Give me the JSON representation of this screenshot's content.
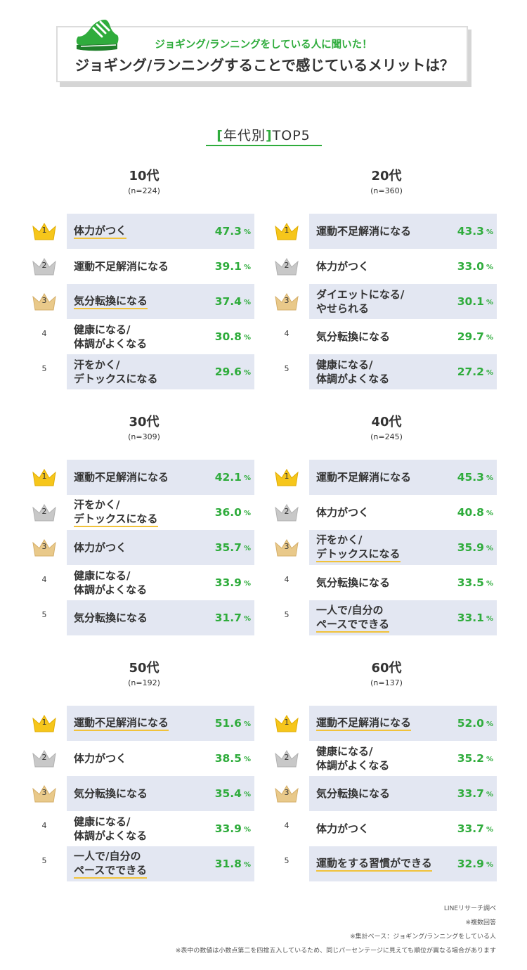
{
  "header": {
    "subtitle": "ジョギング/ランニングをしている人に聞いた！",
    "title": "ジョギング/ランニングすることで感じているメリットは？"
  },
  "section": {
    "title_left": "[",
    "title_mid": "年代別",
    "title_right": "]",
    "title_tail": "TOP5"
  },
  "colors": {
    "accent_green": "#2fac3c",
    "highlight_yellow": "#f1c23a",
    "row_shade": "#e3e7f2",
    "gold": "#f6c61b",
    "silver": "#c8c8c8",
    "bronze": "#e9c98a"
  },
  "chart_data": [
    {
      "type": "table",
      "title": "10代",
      "n": "(n=224)",
      "rows": [
        {
          "rank": "1",
          "label": "体力がつく",
          "value": "47.3",
          "highlight": true
        },
        {
          "rank": "2",
          "label": "運動不足解消になる",
          "value": "39.1",
          "highlight": false
        },
        {
          "rank": "3",
          "label": "気分転換になる",
          "value": "37.4",
          "highlight": true
        },
        {
          "rank": "4",
          "label": "健康になる/\n体調がよくなる",
          "value": "30.8",
          "highlight": false
        },
        {
          "rank": "5",
          "label": "汗をかく/\nデトックスになる",
          "value": "29.6",
          "highlight": false
        }
      ]
    },
    {
      "type": "table",
      "title": "20代",
      "n": "(n=360)",
      "rows": [
        {
          "rank": "1",
          "label": "運動不足解消になる",
          "value": "43.3",
          "highlight": false
        },
        {
          "rank": "2",
          "label": "体力がつく",
          "value": "33.0",
          "highlight": false
        },
        {
          "rank": "3",
          "label": "ダイエットになる/\nやせられる",
          "value": "30.1",
          "highlight": false
        },
        {
          "rank": "4",
          "label": "気分転換になる",
          "value": "29.7",
          "highlight": false
        },
        {
          "rank": "5",
          "label": "健康になる/\n体調がよくなる",
          "value": "27.2",
          "highlight": false
        }
      ]
    },
    {
      "type": "table",
      "title": "30代",
      "n": "(n=309)",
      "rows": [
        {
          "rank": "1",
          "label": "運動不足解消になる",
          "value": "42.1",
          "highlight": false
        },
        {
          "rank": "2",
          "label": "汗をかく/\nデトックスになる",
          "value": "36.0",
          "highlight": true
        },
        {
          "rank": "3",
          "label": "体力がつく",
          "value": "35.7",
          "highlight": false
        },
        {
          "rank": "4",
          "label": "健康になる/\n体調がよくなる",
          "value": "33.9",
          "highlight": false
        },
        {
          "rank": "5",
          "label": "気分転換になる",
          "value": "31.7",
          "highlight": false
        }
      ]
    },
    {
      "type": "table",
      "title": "40代",
      "n": "(n=245)",
      "rows": [
        {
          "rank": "1",
          "label": "運動不足解消になる",
          "value": "45.3",
          "highlight": false
        },
        {
          "rank": "2",
          "label": "体力がつく",
          "value": "40.8",
          "highlight": false
        },
        {
          "rank": "3",
          "label": "汗をかく/\nデトックスになる",
          "value": "35.9",
          "highlight": true
        },
        {
          "rank": "4",
          "label": "気分転換になる",
          "value": "33.5",
          "highlight": false
        },
        {
          "rank": "5",
          "label": "一人で/自分の\nペースでできる",
          "value": "33.1",
          "highlight": true
        }
      ]
    },
    {
      "type": "table",
      "title": "50代",
      "n": "(n=192)",
      "rows": [
        {
          "rank": "1",
          "label": "運動不足解消になる",
          "value": "51.6",
          "highlight": true
        },
        {
          "rank": "2",
          "label": "体力がつく",
          "value": "38.5",
          "highlight": false
        },
        {
          "rank": "3",
          "label": "気分転換になる",
          "value": "35.4",
          "highlight": false
        },
        {
          "rank": "4",
          "label": "健康になる/\n体調がよくなる",
          "value": "33.9",
          "highlight": false
        },
        {
          "rank": "5",
          "label": "一人で/自分の\nペースでできる",
          "value": "31.8",
          "highlight": true
        }
      ]
    },
    {
      "type": "table",
      "title": "60代",
      "n": "(n=137)",
      "rows": [
        {
          "rank": "1",
          "label": "運動不足解消になる",
          "value": "52.0",
          "highlight": true
        },
        {
          "rank": "2",
          "label": "健康になる/\n体調がよくなる",
          "value": "35.2",
          "highlight": false
        },
        {
          "rank": "3",
          "label": "気分転換になる",
          "value": "33.7",
          "highlight": false
        },
        {
          "rank": "4",
          "label": "体力がつく",
          "value": "33.7",
          "highlight": false
        },
        {
          "rank": "5",
          "label": "運動をする習慣ができる",
          "value": "32.9",
          "highlight": true
        }
      ]
    }
  ],
  "percent_sign": "%",
  "notes": [
    "LINEリサーチ調べ",
    "※複数回答",
    "※集計ベース：ジョギング/ランニングをしている人",
    "※表中の数値は小数点第二を四捨五入しているため、同じパーセンテージに見えても順位が異なる場合があります"
  ]
}
